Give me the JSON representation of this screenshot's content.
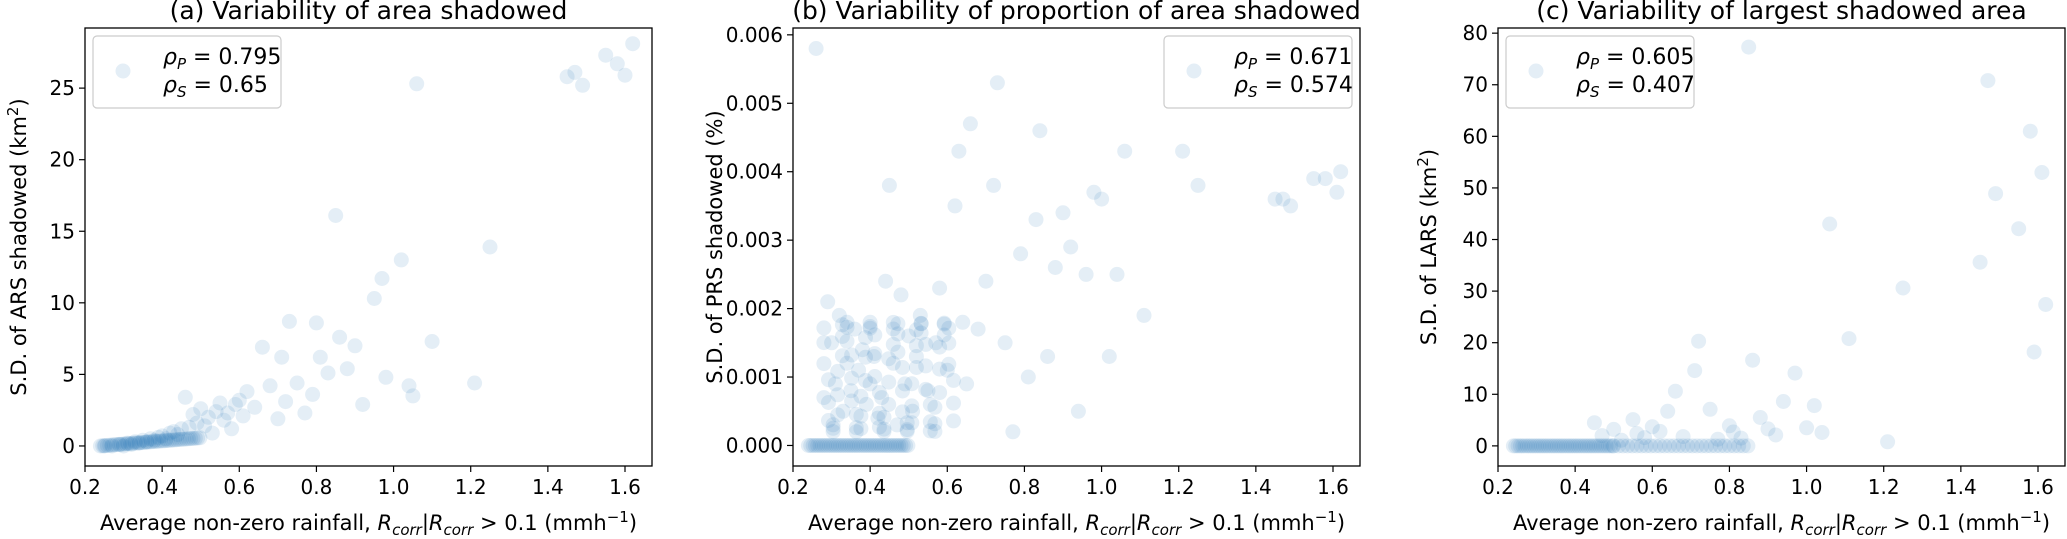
{
  "colors": {
    "points": "#1f77b4"
  },
  "chart_data": [
    {
      "type": "scatter",
      "title": "(a) Variability of area shadowed",
      "xlabel_text": "Average non-zero rainfall, ",
      "xlabel_math": "R",
      "xlabel_sub": "corr",
      "xlabel_mid": "|R",
      "xlabel_tail": " > 0.1 (mmh",
      "xlabel_exp": "−1",
      "xlabel_end": ")",
      "ylabel": "S.D. of ARS shadowed (km",
      "ylabel_exp": "2",
      "ylabel_end": ")",
      "xlim": [
        0.2,
        1.67
      ],
      "ylim": [
        -1.4,
        29.2
      ],
      "xticks": [
        "0.2",
        "0.4",
        "0.6",
        "0.8",
        "1.0",
        "1.2",
        "1.4",
        "1.6"
      ],
      "xtick_values": [
        0.2,
        0.4,
        0.6,
        0.8,
        1.0,
        1.2,
        1.4,
        1.6
      ],
      "yticks": [
        "0",
        "5",
        "10",
        "15",
        "20",
        "25"
      ],
      "ytick_values": [
        0,
        5,
        10,
        15,
        20,
        25
      ],
      "legend_position": "top-left",
      "legend": [
        {
          "symbol": "ρ",
          "sub": "P",
          "value": "= 0.795"
        },
        {
          "symbol": "ρ",
          "sub": "S",
          "value": "= 0.65"
        }
      ],
      "points": [
        [
          0.25,
          0
        ],
        [
          0.27,
          0
        ],
        [
          0.29,
          0.1
        ],
        [
          0.3,
          0
        ],
        [
          0.31,
          0.2
        ],
        [
          0.32,
          0.1
        ],
        [
          0.33,
          0.3
        ],
        [
          0.34,
          0.2
        ],
        [
          0.35,
          0.4
        ],
        [
          0.36,
          0.3
        ],
        [
          0.37,
          0.5
        ],
        [
          0.38,
          0.4
        ],
        [
          0.39,
          0.6
        ],
        [
          0.4,
          0.7
        ],
        [
          0.41,
          0.5
        ],
        [
          0.42,
          0.9
        ],
        [
          0.43,
          1.0
        ],
        [
          0.44,
          0.8
        ],
        [
          0.45,
          1.2
        ],
        [
          0.46,
          3.4
        ],
        [
          0.47,
          1.3
        ],
        [
          0.48,
          2.2
        ],
        [
          0.49,
          1.6
        ],
        [
          0.5,
          2.6
        ],
        [
          0.51,
          1.4
        ],
        [
          0.52,
          2.0
        ],
        [
          0.53,
          0.9
        ],
        [
          0.54,
          2.4
        ],
        [
          0.55,
          3.0
        ],
        [
          0.56,
          1.8
        ],
        [
          0.57,
          2.3
        ],
        [
          0.58,
          1.2
        ],
        [
          0.59,
          2.9
        ],
        [
          0.6,
          3.2
        ],
        [
          0.61,
          2.1
        ],
        [
          0.62,
          3.8
        ],
        [
          0.64,
          2.7
        ],
        [
          0.66,
          6.9
        ],
        [
          0.68,
          4.2
        ],
        [
          0.7,
          1.9
        ],
        [
          0.71,
          6.2
        ],
        [
          0.72,
          3.1
        ],
        [
          0.73,
          8.7
        ],
        [
          0.75,
          4.4
        ],
        [
          0.77,
          2.3
        ],
        [
          0.79,
          3.6
        ],
        [
          0.8,
          8.6
        ],
        [
          0.81,
          6.2
        ],
        [
          0.83,
          5.1
        ],
        [
          0.85,
          16.1
        ],
        [
          0.86,
          7.6
        ],
        [
          0.88,
          5.4
        ],
        [
          0.9,
          7.0
        ],
        [
          0.92,
          2.9
        ],
        [
          0.95,
          10.3
        ],
        [
          0.97,
          11.7
        ],
        [
          0.98,
          4.8
        ],
        [
          1.02,
          13.0
        ],
        [
          1.04,
          4.2
        ],
        [
          1.05,
          3.5
        ],
        [
          1.06,
          25.3
        ],
        [
          1.1,
          7.3
        ],
        [
          1.21,
          4.4
        ],
        [
          1.25,
          13.9
        ],
        [
          1.45,
          25.8
        ],
        [
          1.47,
          26.1
        ],
        [
          1.49,
          25.2
        ],
        [
          1.55,
          27.3
        ],
        [
          1.58,
          26.7
        ],
        [
          1.6,
          25.9
        ],
        [
          1.62,
          28.1
        ]
      ]
    },
    {
      "type": "scatter",
      "title": "(b) Variability of proportion of area shadowed",
      "xlabel_text": "Average non-zero rainfall, ",
      "xlabel_math": "R",
      "xlabel_sub": "corr",
      "xlabel_mid": "|R",
      "xlabel_tail": " > 0.1 (mmh",
      "xlabel_exp": "−1",
      "xlabel_end": ")",
      "ylabel": "S.D. of PRS shadowed (%)",
      "xlim": [
        0.2,
        1.67
      ],
      "ylim": [
        -0.0003,
        0.0061
      ],
      "xticks": [
        "0.2",
        "0.4",
        "0.6",
        "0.8",
        "1.0",
        "1.2",
        "1.4",
        "1.6"
      ],
      "xtick_values": [
        0.2,
        0.4,
        0.6,
        0.8,
        1.0,
        1.2,
        1.4,
        1.6
      ],
      "yticks": [
        "0.000",
        "0.001",
        "0.002",
        "0.003",
        "0.004",
        "0.005",
        "0.006"
      ],
      "ytick_values": [
        0,
        0.001,
        0.002,
        0.003,
        0.004,
        0.005,
        0.006
      ],
      "legend_position": "top-right",
      "legend": [
        {
          "symbol": "ρ",
          "sub": "P",
          "value": "= 0.671"
        },
        {
          "symbol": "ρ",
          "sub": "S",
          "value": "= 0.574"
        }
      ],
      "points": [
        [
          0.26,
          0.0058
        ],
        [
          0.28,
          0.0007
        ],
        [
          0.29,
          0.0021
        ],
        [
          0.3,
          0.0015
        ],
        [
          0.31,
          0.0009
        ],
        [
          0.32,
          0.0019
        ],
        [
          0.33,
          0.0005
        ],
        [
          0.34,
          0.0012
        ],
        [
          0.35,
          0.0008
        ],
        [
          0.36,
          0.0017
        ],
        [
          0.37,
          0.0011
        ],
        [
          0.38,
          0.0014
        ],
        [
          0.39,
          0.0006
        ],
        [
          0.4,
          0.0009
        ],
        [
          0.41,
          0.0013
        ],
        [
          0.42,
          0.0004
        ],
        [
          0.43,
          0.0007
        ],
        [
          0.44,
          0.0024
        ],
        [
          0.45,
          0.0038
        ],
        [
          0.46,
          0.0012
        ],
        [
          0.47,
          0.0003
        ],
        [
          0.48,
          0.0022
        ],
        [
          0.49,
          0.0009
        ],
        [
          0.5,
          0.0016
        ],
        [
          0.51,
          0.0005
        ],
        [
          0.52,
          0.0013
        ],
        [
          0.53,
          0.0019
        ],
        [
          0.55,
          0.0008
        ],
        [
          0.57,
          0.0015
        ],
        [
          0.58,
          0.0023
        ],
        [
          0.6,
          0.0011
        ],
        [
          0.62,
          0.0035
        ],
        [
          0.63,
          0.0043
        ],
        [
          0.64,
          0.0018
        ],
        [
          0.65,
          0.0009
        ],
        [
          0.66,
          0.0047
        ],
        [
          0.68,
          0.0017
        ],
        [
          0.7,
          0.0024
        ],
        [
          0.72,
          0.0038
        ],
        [
          0.73,
          0.0053
        ],
        [
          0.75,
          0.0015
        ],
        [
          0.77,
          0.0002
        ],
        [
          0.79,
          0.0028
        ],
        [
          0.81,
          0.001
        ],
        [
          0.83,
          0.0033
        ],
        [
          0.84,
          0.0046
        ],
        [
          0.86,
          0.0013
        ],
        [
          0.88,
          0.0026
        ],
        [
          0.9,
          0.0034
        ],
        [
          0.92,
          0.0029
        ],
        [
          0.94,
          0.0005
        ],
        [
          0.96,
          0.0025
        ],
        [
          0.98,
          0.0037
        ],
        [
          1.0,
          0.0036
        ],
        [
          1.02,
          0.0013
        ],
        [
          1.04,
          0.0025
        ],
        [
          1.06,
          0.0043
        ],
        [
          1.11,
          0.0019
        ],
        [
          1.21,
          0.0043
        ],
        [
          1.25,
          0.0038
        ],
        [
          1.45,
          0.0036
        ],
        [
          1.47,
          0.0036
        ],
        [
          1.49,
          0.0035
        ],
        [
          1.55,
          0.0039
        ],
        [
          1.58,
          0.0039
        ],
        [
          1.61,
          0.0037
        ],
        [
          1.62,
          0.004
        ]
      ]
    },
    {
      "type": "scatter",
      "title": "(c) Variability of largest shadowed area",
      "xlabel_text": "Average non-zero rainfall, ",
      "xlabel_math": "R",
      "xlabel_sub": "corr",
      "xlabel_mid": "|R",
      "xlabel_tail": " > 0.1 (mmh",
      "xlabel_exp": "−1",
      "xlabel_end": ")",
      "ylabel": "S.D. of LARS (km",
      "ylabel_exp": "2",
      "ylabel_end": ")",
      "xlim": [
        0.2,
        1.67
      ],
      "ylim": [
        -3.9,
        81
      ],
      "xticks": [
        "0.2",
        "0.4",
        "0.6",
        "0.8",
        "1.0",
        "1.2",
        "1.4",
        "1.6"
      ],
      "xtick_values": [
        0.2,
        0.4,
        0.6,
        0.8,
        1.0,
        1.2,
        1.4,
        1.6
      ],
      "yticks": [
        "0",
        "10",
        "20",
        "30",
        "40",
        "50",
        "60",
        "70",
        "80"
      ],
      "ytick_values": [
        0,
        10,
        20,
        30,
        40,
        50,
        60,
        70,
        80
      ],
      "legend_position": "top-left",
      "legend": [
        {
          "symbol": "ρ",
          "sub": "P",
          "value": "= 0.605"
        },
        {
          "symbol": "ρ",
          "sub": "S",
          "value": "= 0.407"
        }
      ],
      "points": [
        [
          0.45,
          4.5
        ],
        [
          0.47,
          2.0
        ],
        [
          0.5,
          3.2
        ],
        [
          0.52,
          1.1
        ],
        [
          0.55,
          5.1
        ],
        [
          0.56,
          2.4
        ],
        [
          0.58,
          1.6
        ],
        [
          0.6,
          3.7
        ],
        [
          0.62,
          2.8
        ],
        [
          0.64,
          6.7
        ],
        [
          0.66,
          10.6
        ],
        [
          0.68,
          1.8
        ],
        [
          0.71,
          14.6
        ],
        [
          0.72,
          20.3
        ],
        [
          0.75,
          7.1
        ],
        [
          0.77,
          1.3
        ],
        [
          0.8,
          3.9
        ],
        [
          0.81,
          2.7
        ],
        [
          0.83,
          1.5
        ],
        [
          0.85,
          77.3
        ],
        [
          0.86,
          16.6
        ],
        [
          0.88,
          5.5
        ],
        [
          0.9,
          3.3
        ],
        [
          0.92,
          2.1
        ],
        [
          0.94,
          8.6
        ],
        [
          0.97,
          14.1
        ],
        [
          1.0,
          3.5
        ],
        [
          1.02,
          7.8
        ],
        [
          1.04,
          2.6
        ],
        [
          1.06,
          43.0
        ],
        [
          1.11,
          20.8
        ],
        [
          1.21,
          0.8
        ],
        [
          1.25,
          30.6
        ],
        [
          1.45,
          35.6
        ],
        [
          1.47,
          70.8
        ],
        [
          1.49,
          48.9
        ],
        [
          1.55,
          42.1
        ],
        [
          1.58,
          61.0
        ],
        [
          1.59,
          18.2
        ],
        [
          1.61,
          53.0
        ],
        [
          1.62,
          27.4
        ]
      ]
    }
  ]
}
